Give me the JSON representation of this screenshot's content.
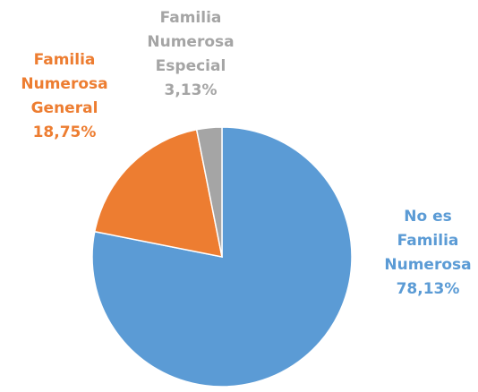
{
  "chart_data": {
    "type": "pie",
    "categories": [
      "No es Familia Numerosa",
      "Familia Numerosa General",
      "Familia Numerosa Especial"
    ],
    "values": [
      78.13,
      18.75,
      3.13
    ],
    "value_labels": [
      "78,13%",
      "18,75%",
      "3,13%"
    ],
    "colors": [
      "#5b9bd5",
      "#ed7d31",
      "#a5a5a5"
    ]
  }
}
